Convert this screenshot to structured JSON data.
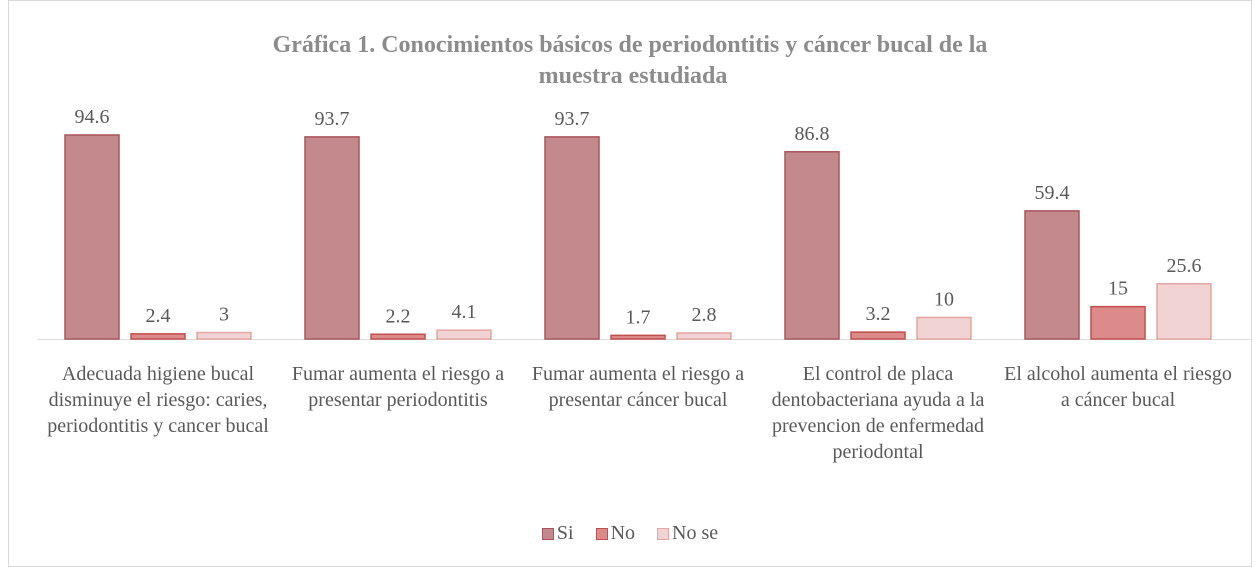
{
  "chart_data": {
    "type": "bar",
    "title": "Gráfica 1. Conocimientos básicos de periodontitis y cáncer bucal de la muestra estudiada",
    "categories": [
      "Adecuada higiene bucal disminuye el riesgo: caries, periodontitis y cancer bucal",
      "Fumar aumenta el riesgo a presentar periodontitis",
      "Fumar aumenta el riesgo a presentar cáncer bucal",
      "El control de placa dentobacteriana ayuda a la prevencion de enfermedad periodontal",
      "El alcohol aumenta el riesgo a cáncer bucal"
    ],
    "series": [
      {
        "name": "Si",
        "color": "#c4898d",
        "values": [
          94.6,
          93.7,
          93.7,
          86.8,
          59.4
        ]
      },
      {
        "name": "No",
        "color": "#dc8a8a",
        "values": [
          2.4,
          2.2,
          1.7,
          3.2,
          15
        ]
      },
      {
        "name": "No se",
        "color": "#f2d3d3",
        "values": [
          3,
          4.1,
          2.8,
          10,
          25.6
        ]
      }
    ],
    "legend": "bottom"
  }
}
